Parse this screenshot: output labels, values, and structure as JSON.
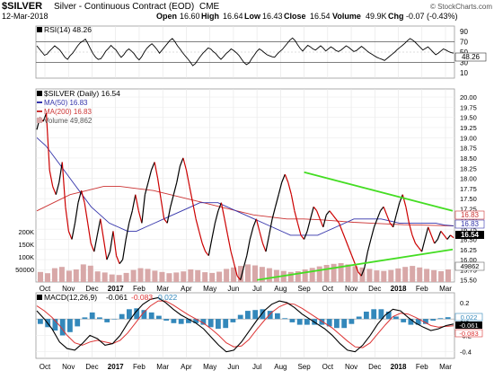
{
  "header": {
    "symbol": "$SILVER",
    "description": "Silver - Continuous Contract (EOD)",
    "exchange": "CME",
    "date": "12-Mar-2018",
    "open_label": "Open",
    "open_value": "16.60",
    "high_label": "High",
    "high_value": "16.64",
    "low_label": "Low",
    "low_value": "16.43",
    "close_label": "Close",
    "close_value": "16.54",
    "volume_label": "Volume",
    "volume_value": "49.9K",
    "chg_label": "Chg",
    "chg_value": "-0.07 (-0.43%)",
    "brand": "© StockCharts.com"
  },
  "colors": {
    "price": "#000000",
    "price_down": "#cc0000",
    "ma50": "#3333aa",
    "ma200": "#cc3333",
    "volume": "#d8a8a8",
    "trendline": "#44dd22",
    "macd": "#000000",
    "signal": "#dd3333",
    "histogram": "#3388bb"
  },
  "chart_data": [
    {
      "type": "line",
      "panel": "rsi",
      "title": "RSI(14) 48.26",
      "ticks": [
        90,
        70,
        50,
        30,
        10
      ],
      "ylim": [
        0,
        100
      ],
      "overbought": 70,
      "oversold": 30,
      "last_value_label": "48.26",
      "series": [
        {
          "name": "RSI(14)",
          "values": [
            62,
            56,
            50,
            44,
            46,
            52,
            57,
            62,
            58,
            54,
            47,
            40,
            36,
            43,
            48,
            55,
            62,
            68,
            71,
            75,
            66,
            56,
            47,
            40,
            36,
            37,
            44,
            52,
            57,
            63,
            58,
            54,
            46,
            40,
            45,
            52,
            56,
            52,
            47,
            40,
            35,
            41,
            50,
            57,
            62,
            66,
            61,
            55,
            48,
            54,
            60,
            66,
            72,
            76,
            70,
            62,
            56,
            49,
            43,
            37,
            31,
            24,
            28,
            35,
            42,
            48,
            53,
            58,
            56,
            51,
            47,
            41,
            36,
            41,
            47,
            51,
            56,
            53,
            49,
            44,
            37,
            30,
            26,
            29,
            37,
            44,
            51,
            56,
            53,
            49,
            45,
            43,
            41,
            40,
            46,
            51,
            55,
            61,
            67,
            73,
            77,
            72,
            64,
            57,
            52,
            58,
            63,
            60,
            56,
            54,
            58,
            62,
            58,
            52,
            56,
            60,
            57,
            53,
            51,
            54,
            58,
            62,
            59,
            55,
            51,
            53,
            57,
            61,
            57,
            53,
            49,
            46,
            43,
            40,
            38,
            36,
            34,
            38,
            42,
            46,
            50,
            55,
            59,
            63,
            67,
            72,
            76,
            73,
            69,
            64,
            59,
            54,
            57,
            60,
            55,
            50,
            45,
            48,
            52,
            56,
            54,
            51,
            49,
            48
          ]
        }
      ]
    },
    {
      "type": "line",
      "panel": "price",
      "title": "$SILVER (Daily) 16.54",
      "ticks": [
        "20.00",
        "19.75",
        "19.50",
        "19.25",
        "19.00",
        "18.75",
        "18.50",
        "18.25",
        "18.00",
        "17.75",
        "17.50",
        "17.25",
        "17.00",
        "16.75",
        "16.50",
        "16.25",
        "16.00",
        "15.75",
        "15.50"
      ],
      "ylim": [
        15.45,
        20.2
      ],
      "volume_ticks": [
        "200K",
        "150K",
        "100K",
        "50000"
      ],
      "volume_ylim": [
        0,
        250000
      ],
      "markers": [
        "16.83",
        "16.83",
        "16.54",
        "49862"
      ],
      "x_labels": [
        "Oct",
        "Nov",
        "Dec",
        "2017",
        "Feb",
        "Mar",
        "Apr",
        "May",
        "Jun",
        "Jul",
        "Aug",
        "Sep",
        "Oct",
        "Nov",
        "Dec",
        "2018",
        "Feb",
        "Mar"
      ],
      "series": [
        {
          "name": "$SILVER (Daily) 16.54",
          "values": [
            19.2,
            19.5,
            19.4,
            19.6,
            18.2,
            17.8,
            17.6,
            17.9,
            18.4,
            17.3,
            16.7,
            16.5,
            16.9,
            17.4,
            17.7,
            17.4,
            16.9,
            16.4,
            16.2,
            16.6,
            17.0,
            16.5,
            16.0,
            16.2,
            16.7,
            16.1,
            15.9,
            16.0,
            16.5,
            16.9,
            17.2,
            17.6,
            17.2,
            16.9,
            17.6,
            17.9,
            18.2,
            18.4,
            18.0,
            17.5,
            17.0,
            16.9,
            17.3,
            17.6,
            17.9,
            18.3,
            18.5,
            18.2,
            17.8,
            17.4,
            17.0,
            16.7,
            16.4,
            16.2,
            16.1,
            16.5,
            16.9,
            17.2,
            17.4,
            17.0,
            16.6,
            16.2,
            15.9,
            15.6,
            15.5,
            15.8,
            16.1,
            16.5,
            16.8,
            17.0,
            16.7,
            16.4,
            16.2,
            16.6,
            17.0,
            17.3,
            17.6,
            17.9,
            18.1,
            17.9,
            17.6,
            17.2,
            16.9,
            16.6,
            16.5,
            16.7,
            17.0,
            17.3,
            17.2,
            17.0,
            16.8,
            17.1,
            17.2,
            17.1,
            17.0,
            16.9,
            16.7,
            16.5,
            16.3,
            16.1,
            15.9,
            15.7,
            15.6,
            15.8,
            16.2,
            16.5,
            16.8,
            17.0,
            17.2,
            17.3,
            17.1,
            16.9,
            16.8,
            17.1,
            17.4,
            17.6,
            17.3,
            16.9,
            16.6,
            16.4,
            16.3,
            16.2,
            16.5,
            16.8,
            16.6,
            16.4,
            16.5,
            16.7,
            16.6,
            16.5,
            16.6,
            16.54
          ]
        },
        {
          "name": "MA(50) 16.83",
          "values": [
            19.0,
            18.8,
            18.5,
            18.2,
            17.9,
            17.6,
            17.3,
            17.1,
            16.9,
            16.8,
            16.7,
            16.7,
            16.8,
            16.9,
            17.0,
            17.1,
            17.2,
            17.3,
            17.4,
            17.4,
            17.4,
            17.3,
            17.2,
            17.1,
            17.0,
            16.9,
            16.8,
            16.7,
            16.6,
            16.6,
            16.6,
            16.6,
            16.7,
            16.8,
            16.9,
            17.0,
            17.0,
            17.0,
            17.0,
            16.95,
            16.9,
            16.9,
            16.9,
            16.9,
            16.9,
            16.85,
            16.83
          ]
        },
        {
          "name": "MA(200) 16.83",
          "values": [
            17.2,
            17.4,
            17.6,
            17.7,
            17.8,
            17.8,
            17.75,
            17.7,
            17.6,
            17.5,
            17.4,
            17.3,
            17.2,
            17.1,
            17.05,
            17.0,
            17.0,
            16.98,
            16.95,
            16.92,
            16.9,
            16.88,
            16.86,
            16.85,
            16.84,
            16.83
          ]
        },
        {
          "name": "Volume 49,862",
          "values": [
            40000,
            35000,
            55000,
            60000,
            45000,
            50000,
            70000,
            65000,
            42000,
            38000,
            30000,
            28000,
            36000,
            48000,
            55000,
            52000,
            45000,
            40000,
            35000,
            38000,
            42000,
            50000,
            47000,
            39000,
            36000,
            41000,
            52000,
            58000,
            64000,
            70000,
            66000,
            60000,
            55000,
            48000,
            44000,
            40000,
            43000,
            50000,
            56000,
            62000,
            68000,
            72000,
            75000,
            70000,
            63000,
            58000,
            52000,
            46000,
            44000,
            48000,
            54000,
            60000,
            64000,
            58000,
            52000,
            47000,
            43000,
            49862
          ]
        }
      ],
      "trendlines": [
        {
          "name": "upper",
          "from": [
            "Sep",
            18.15
          ],
          "to": [
            "Mar",
            17.2
          ]
        },
        {
          "name": "lower",
          "from": [
            "Jul",
            15.5
          ],
          "to": [
            "Mar",
            16.25
          ]
        }
      ]
    },
    {
      "type": "line",
      "panel": "macd",
      "title": "MACD(12,26,9)",
      "macd_value": "-0.061",
      "signal_value": "-0.083",
      "hist_value": "0.022",
      "ticks": [
        "0.2",
        "0.0",
        "-0.2",
        "-0.4"
      ],
      "ylim": [
        -0.48,
        0.32
      ],
      "markers": [
        "0.022",
        "-0.061",
        "-0.083"
      ],
      "x_labels": [
        "Oct",
        "Nov",
        "Dec",
        "2017",
        "Feb",
        "Mar",
        "Apr",
        "May",
        "Jun",
        "Jul",
        "Aug",
        "Sep",
        "Oct",
        "Nov",
        "Dec",
        "2018",
        "Feb",
        "Mar"
      ],
      "series": [
        {
          "name": "MACD(12,26,9)",
          "values": [
            0.1,
            0.0,
            -0.12,
            -0.28,
            -0.36,
            -0.38,
            -0.3,
            -0.2,
            -0.24,
            -0.32,
            -0.3,
            -0.2,
            -0.05,
            0.08,
            0.18,
            0.24,
            0.26,
            0.2,
            0.12,
            0.05,
            0.0,
            -0.05,
            -0.12,
            -0.22,
            -0.32,
            -0.4,
            -0.38,
            -0.28,
            -0.15,
            -0.02,
            0.1,
            0.18,
            0.22,
            0.2,
            0.14,
            0.06,
            0.0,
            -0.06,
            -0.12,
            -0.2,
            -0.3,
            -0.38,
            -0.4,
            -0.32,
            -0.2,
            -0.06,
            0.05,
            0.12,
            0.1,
            0.02,
            -0.05,
            -0.1,
            -0.14,
            -0.12,
            -0.08,
            -0.061
          ]
        },
        {
          "name": "Signal",
          "values": [
            0.16,
            0.1,
            0.02,
            -0.08,
            -0.2,
            -0.29,
            -0.32,
            -0.28,
            -0.26,
            -0.28,
            -0.3,
            -0.26,
            -0.17,
            -0.05,
            0.07,
            0.16,
            0.22,
            0.22,
            0.17,
            0.11,
            0.05,
            0.0,
            -0.05,
            -0.12,
            -0.2,
            -0.29,
            -0.34,
            -0.33,
            -0.25,
            -0.13,
            -0.02,
            0.08,
            0.15,
            0.19,
            0.18,
            0.13,
            0.07,
            0.01,
            -0.05,
            -0.11,
            -0.19,
            -0.27,
            -0.34,
            -0.35,
            -0.29,
            -0.18,
            -0.07,
            0.03,
            0.07,
            0.06,
            0.02,
            -0.03,
            -0.08,
            -0.1,
            -0.09,
            -0.083
          ]
        }
      ]
    }
  ]
}
